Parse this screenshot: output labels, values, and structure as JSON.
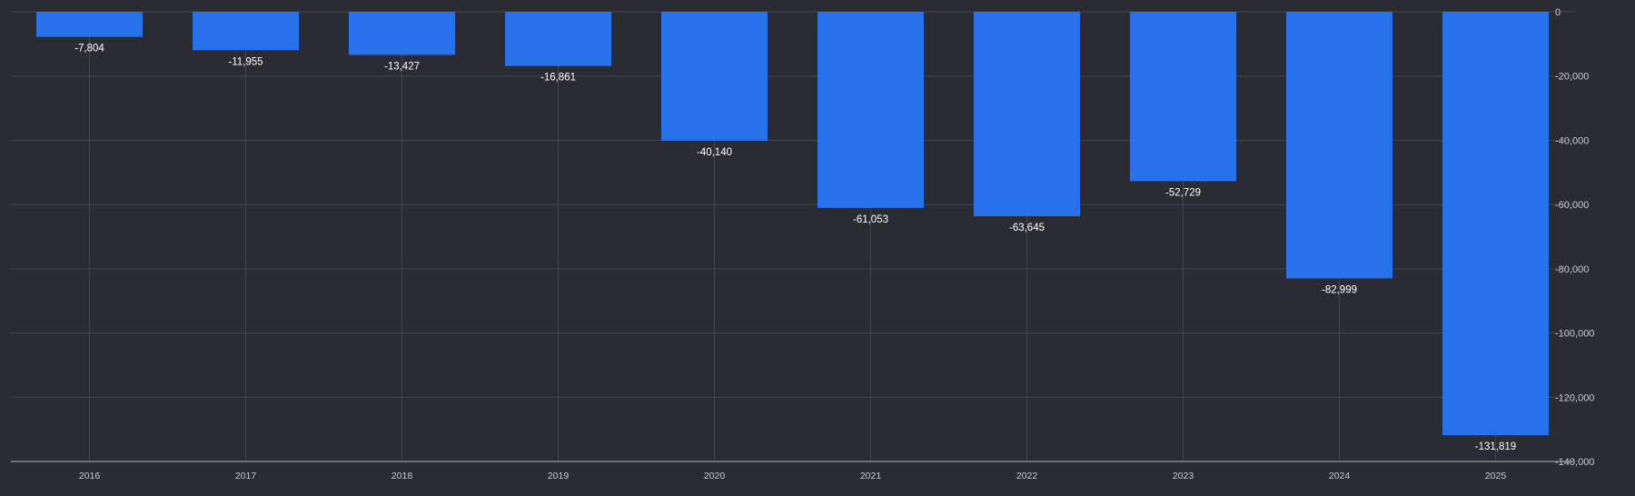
{
  "chart_data": {
    "type": "bar",
    "categories": [
      "2016",
      "2017",
      "2018",
      "2019",
      "2020",
      "2021",
      "2022",
      "2023",
      "2024",
      "2025"
    ],
    "values": [
      -7804,
      -11955,
      -13427,
      -16861,
      -40140,
      -61053,
      -63645,
      -52729,
      -82999,
      -131819
    ],
    "value_labels": [
      "-7,804",
      "-11,955",
      "-13,427",
      "-16,861",
      "-40,140",
      "-61,053",
      "-63,645",
      "-52,729",
      "-82,999",
      "-131,819"
    ],
    "y_ticks": [
      0,
      -20000,
      -40000,
      -60000,
      -80000,
      -100000,
      -120000,
      -140000
    ],
    "y_tick_labels": [
      "0",
      "-20,000",
      "-40,000",
      "-60,000",
      "-80,000",
      "-100,000",
      "-120,000",
      "-140,000"
    ],
    "ylim": [
      -140000,
      0
    ],
    "y_axis_position": "right",
    "grid": true,
    "title": "",
    "xlabel": "",
    "ylabel": ""
  },
  "colors": {
    "background": "#2b2b33",
    "bar": "#2772ea",
    "grid": "#45454d",
    "axis": "#9a9aa2",
    "tick_text": "#c9c9cf",
    "label_text": "#ffffff"
  }
}
